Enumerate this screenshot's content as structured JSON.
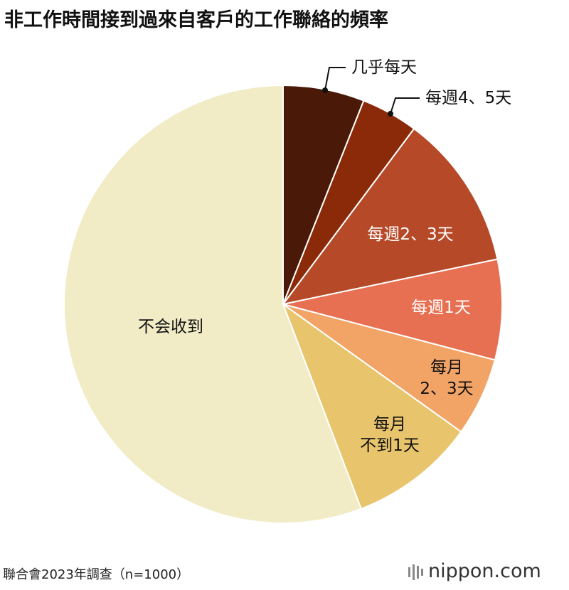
{
  "chart_data": {
    "type": "pie",
    "title": "非工作時間接到過來自客戶的工作聯絡的頻率",
    "categories": [
      "几乎每天",
      "每週4、5天",
      "每週2、3天",
      "每週1天",
      "每月\n2、3天",
      "每月\n不到1天",
      "不会收到"
    ],
    "values": [
      6,
      4.2,
      11.5,
      7.4,
      5.8,
      9.3,
      55.8
    ],
    "colors": [
      "#4a1908",
      "#8a2a08",
      "#b64a28",
      "#e87052",
      "#f2a466",
      "#e8c46c",
      "#f1ecc6"
    ],
    "source": "聯合會2023年調查（n=1000）",
    "logo": "nippon.com"
  }
}
